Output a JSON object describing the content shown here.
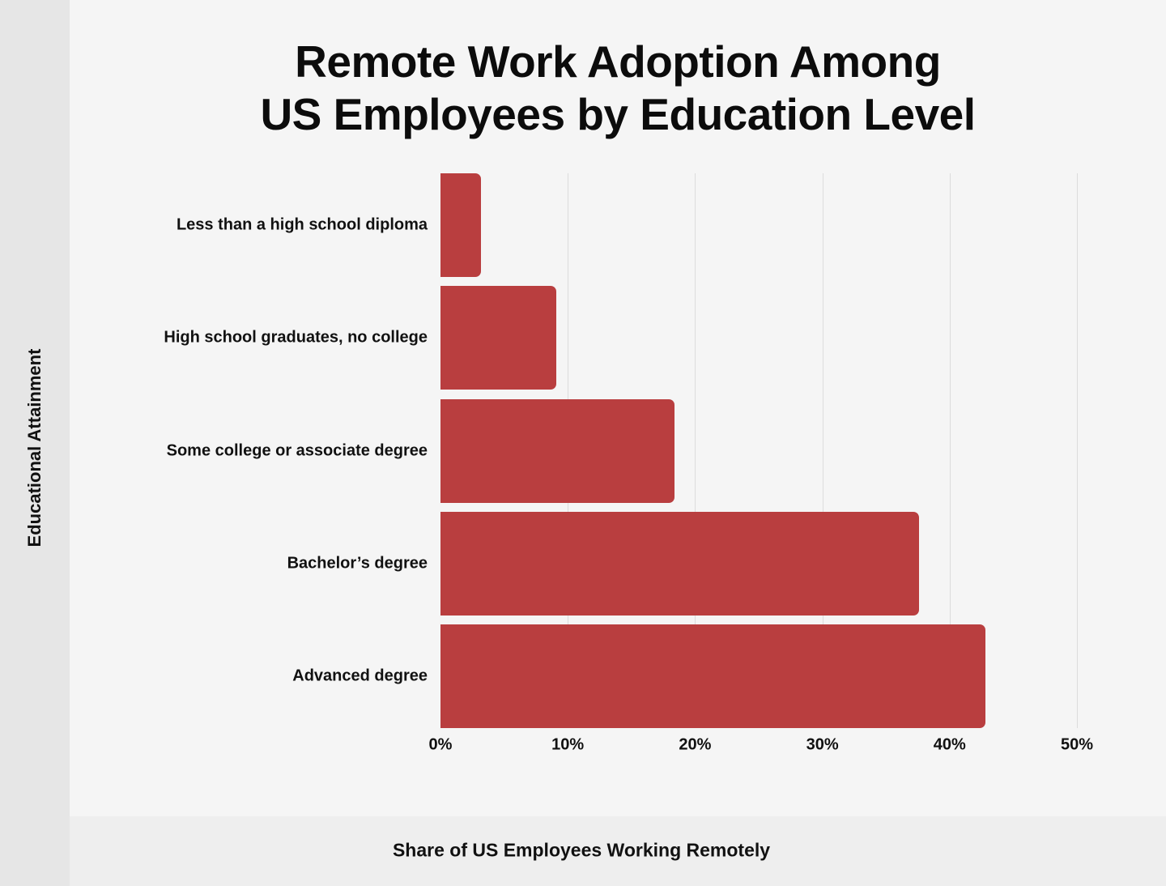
{
  "chart_data": {
    "type": "bar",
    "orientation": "horizontal",
    "title": "Remote Work Adoption Among US Employees by Education Level",
    "title_lines": [
      "Remote Work Adoption Among",
      "US Employees by Education Level"
    ],
    "xlabel": "Share of US Employees Working Remotely",
    "ylabel": "Educational Attainment",
    "categories": [
      "Less than a high school diploma",
      "High school graduates, no college",
      "Some college or associate degree",
      "Bachelor’s degree",
      "Advanced degree"
    ],
    "values": [
      3.2,
      9.1,
      18.4,
      37.6,
      42.8
    ],
    "unit": "%",
    "xlim": [
      0,
      50
    ],
    "xticks": [
      "0%",
      "10%",
      "20%",
      "30%",
      "40%",
      "50%"
    ],
    "grid": "vertical",
    "legend": null,
    "bar_color": "#b93e3f"
  },
  "colors": {
    "background": "#f5f5f5",
    "left_panel": "#e6e6e6",
    "bottom_band": "#eeeeee",
    "bar": "#b93e3f",
    "grid": "#dcdcdc",
    "text": "#111111"
  }
}
